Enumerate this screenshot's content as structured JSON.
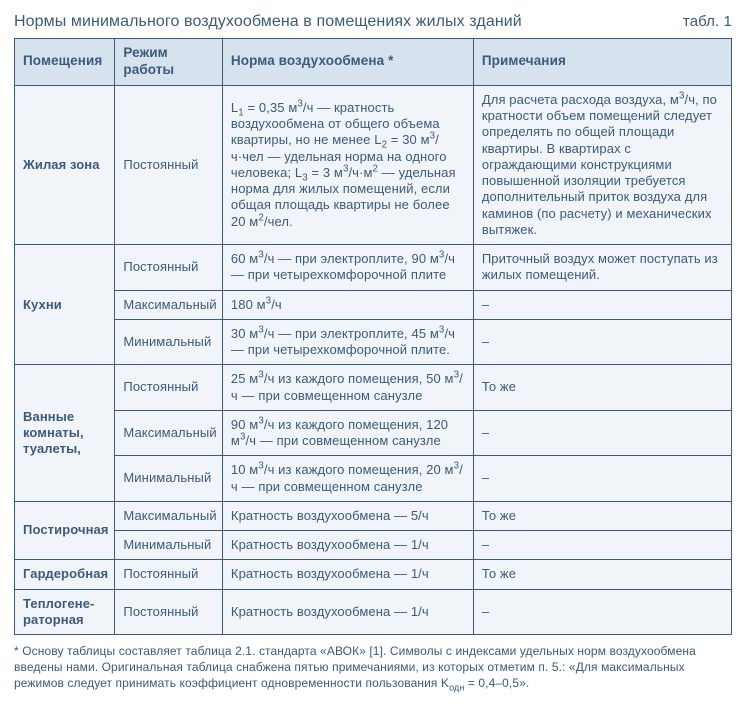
{
  "colors": {
    "text": "#3c5a7a",
    "border": "#3c5a7a",
    "page_bg": "#ffffff",
    "header_bg": "#d6e3ef",
    "body_bg": "#f1f5f9"
  },
  "typography": {
    "title_fontsize": 16,
    "header_fontsize": 13.5,
    "body_fontsize": 13,
    "footnote_fontsize": 12,
    "font_family": "Helvetica Condensed / Arial Narrow"
  },
  "title": "Нормы минимального воздухообмена в помещениях жилых зданий",
  "table_label": "табл. 1",
  "table": {
    "type": "table",
    "column_widths_pct": [
      14,
      15,
      35,
      36
    ],
    "columns": [
      "Помещения",
      "Режим работы",
      "Норма воздухообмена *",
      "Примечания"
    ],
    "rows": [
      {
        "room": "Жилая зона",
        "mode": "Постоянный",
        "rate": "L₁ = 0,35 м³/ч — кратность воздухообмена от общего объема квартиры, но не менее L₂ = 30 м³/ч·чел — удельная норма на одного человека; L₃ = 3 м³/ч·м² — удельная норма для жилых помещений, если общая площадь квартиры не более 20 м²/чел.",
        "note": "Для расчета расхода воздуха, м³/ч, по кратности объем помещений следует определять по общей площади квартиры. В квартирах с ограждающими конструкциями повышенной изоляции требуется дополнительный приток воздуха для каминов (по расчету) и механических вытяжек.",
        "room_rowspan": 1
      },
      {
        "room": "Кухни",
        "mode": "Постоянный",
        "rate": "60 м³/ч — при электроплите, 90 м³/ч — при четырехкомфорочной плите",
        "note": "Приточный воздух может поступать из жилых помещений.",
        "room_rowspan": 3
      },
      {
        "mode": "Максимальный",
        "rate": "180 м³/ч",
        "note": "–"
      },
      {
        "mode": "Минимальный",
        "rate": "30 м³/ч — при электроплите, 45 м³/ч — при четырехкомфорочной плите.",
        "note": "–"
      },
      {
        "room": "Ванные комнаты, туалеты,",
        "mode": "Постоянный",
        "rate": "25 м³/ч из каждого помещения, 50 м³/ч — при совмещенном санузле",
        "note": "То же",
        "room_rowspan": 3
      },
      {
        "mode": "Максимальный",
        "rate": "90 м³/ч из каждого помещения, 120 м³/ч — при совмещенном санузле",
        "note": "–"
      },
      {
        "mode": "Минимальный",
        "rate": "10 м³/ч из каждого помещения, 20 м³/ч — при совмещенном санузле",
        "note": "–"
      },
      {
        "room": "Постирочная",
        "mode": "Максимальный",
        "rate": "Кратность воздухообмена — 5/ч",
        "note": "То же",
        "room_rowspan": 2
      },
      {
        "mode": "Минимальный",
        "rate": "Кратность воздухообмена — 1/ч",
        "note": "–"
      },
      {
        "room": "Гардеробная",
        "mode": "Постоянный",
        "rate": "Кратность воздухообмена — 1/ч",
        "note": "То же",
        "room_rowspan": 1
      },
      {
        "room": "Теплогене-раторная",
        "mode": "Постоянный",
        "rate": "Кратность воздухообмена — 1/ч",
        "note": "–",
        "room_rowspan": 1
      }
    ]
  },
  "footnote": "* Основу таблицы составляет таблица 2.1. стандарта «АВОК» [1]. Символы с индексами удельных норм воздухообмена введены нами. Оригинальная таблица снабжена пятью примечаниями, из которых отметим п. 5.: «Для максимальных режимов следует принимать коэффициент одновременности пользования K_одн = 0,4–0,5»."
}
